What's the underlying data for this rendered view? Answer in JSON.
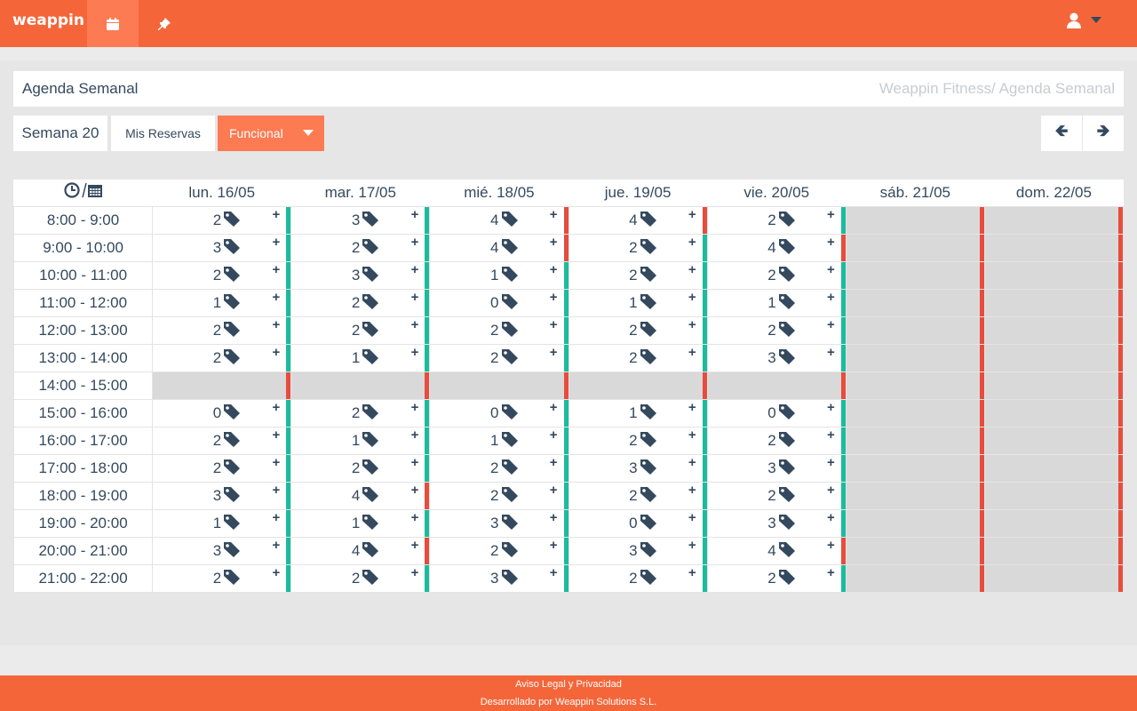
{
  "brand": "weappin",
  "nav": {
    "calendar_icon": "calendar-icon",
    "pin_icon": "pin-icon",
    "user_icon": "user-icon"
  },
  "title": "Agenda Semanal",
  "breadcrumb": "Weappin Fitness/ Agenda Semanal",
  "week_label": "Semana 20",
  "my_bookings": "Mis Reservas",
  "activity_select": "Funcional",
  "colors": {
    "accent": "#f4663a",
    "available": "#1abc9c",
    "full": "#e74c3c",
    "closed": "#d9d9d9"
  },
  "table": {
    "corner": "clock/calendar",
    "days": [
      "lun. 16/05",
      "mar. 17/05",
      "mié. 18/05",
      "jue. 19/05",
      "vie. 20/05",
      "sáb. 21/05",
      "dom. 22/05"
    ],
    "rows": [
      {
        "time": "8:00 - 9:00",
        "cells": [
          [
            2,
            "g"
          ],
          [
            3,
            "g"
          ],
          [
            4,
            "r"
          ],
          [
            4,
            "r"
          ],
          [
            2,
            "g"
          ],
          null,
          null
        ]
      },
      {
        "time": "9:00 - 10:00",
        "cells": [
          [
            3,
            "g"
          ],
          [
            2,
            "g"
          ],
          [
            4,
            "r"
          ],
          [
            2,
            "g"
          ],
          [
            4,
            "r"
          ],
          null,
          null
        ]
      },
      {
        "time": "10:00 - 11:00",
        "cells": [
          [
            2,
            "g"
          ],
          [
            3,
            "g"
          ],
          [
            1,
            "g"
          ],
          [
            2,
            "g"
          ],
          [
            2,
            "g"
          ],
          null,
          null
        ]
      },
      {
        "time": "11:00 - 12:00",
        "cells": [
          [
            1,
            "g"
          ],
          [
            2,
            "g"
          ],
          [
            0,
            "g"
          ],
          [
            1,
            "g"
          ],
          [
            1,
            "g"
          ],
          null,
          null
        ]
      },
      {
        "time": "12:00 - 13:00",
        "cells": [
          [
            2,
            "g"
          ],
          [
            2,
            "g"
          ],
          [
            2,
            "g"
          ],
          [
            2,
            "g"
          ],
          [
            2,
            "g"
          ],
          null,
          null
        ]
      },
      {
        "time": "13:00 - 14:00",
        "cells": [
          [
            2,
            "g"
          ],
          [
            1,
            "g"
          ],
          [
            2,
            "g"
          ],
          [
            2,
            "g"
          ],
          [
            3,
            "g"
          ],
          null,
          null
        ]
      },
      {
        "time": "14:00 - 15:00",
        "cells": [
          null,
          null,
          null,
          null,
          null,
          null,
          null
        ]
      },
      {
        "time": "15:00 - 16:00",
        "cells": [
          [
            0,
            "g"
          ],
          [
            2,
            "g"
          ],
          [
            0,
            "g"
          ],
          [
            1,
            "g"
          ],
          [
            0,
            "g"
          ],
          null,
          null
        ]
      },
      {
        "time": "16:00 - 17:00",
        "cells": [
          [
            2,
            "g"
          ],
          [
            1,
            "g"
          ],
          [
            1,
            "g"
          ],
          [
            2,
            "g"
          ],
          [
            2,
            "g"
          ],
          null,
          null
        ]
      },
      {
        "time": "17:00 - 18:00",
        "cells": [
          [
            2,
            "g"
          ],
          [
            2,
            "g"
          ],
          [
            2,
            "g"
          ],
          [
            3,
            "g"
          ],
          [
            3,
            "g"
          ],
          null,
          null
        ]
      },
      {
        "time": "18:00 - 19:00",
        "cells": [
          [
            3,
            "g"
          ],
          [
            4,
            "r"
          ],
          [
            2,
            "g"
          ],
          [
            2,
            "g"
          ],
          [
            2,
            "g"
          ],
          null,
          null
        ]
      },
      {
        "time": "19:00 - 20:00",
        "cells": [
          [
            1,
            "g"
          ],
          [
            1,
            "g"
          ],
          [
            3,
            "g"
          ],
          [
            0,
            "g"
          ],
          [
            3,
            "g"
          ],
          null,
          null
        ]
      },
      {
        "time": "20:00 - 21:00",
        "cells": [
          [
            3,
            "g"
          ],
          [
            4,
            "r"
          ],
          [
            2,
            "g"
          ],
          [
            3,
            "g"
          ],
          [
            4,
            "r"
          ],
          null,
          null
        ]
      },
      {
        "time": "21:00 - 22:00",
        "cells": [
          [
            2,
            "g"
          ],
          [
            2,
            "g"
          ],
          [
            3,
            "g"
          ],
          [
            2,
            "g"
          ],
          [
            2,
            "g"
          ],
          null,
          null
        ]
      }
    ]
  },
  "footer": {
    "legal": "Aviso Legal y Privacidad",
    "dev": "Desarrollado por Weappin Solutions S.L."
  }
}
